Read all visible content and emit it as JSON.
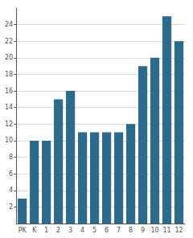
{
  "chart_data": {
    "type": "bar",
    "categories": [
      "PK",
      "K",
      "1",
      "2",
      "3",
      "4",
      "5",
      "6",
      "7",
      "8",
      "9",
      "10",
      "11",
      "12"
    ],
    "values": [
      3,
      10,
      10,
      15,
      16,
      11,
      11,
      11,
      11,
      12,
      19,
      20,
      25,
      22
    ],
    "color": "#2e6b8a",
    "ylim": [
      0,
      26
    ],
    "yticks": [
      2,
      4,
      6,
      8,
      10,
      12,
      14,
      16,
      18,
      20,
      22,
      24
    ],
    "grid": true
  }
}
